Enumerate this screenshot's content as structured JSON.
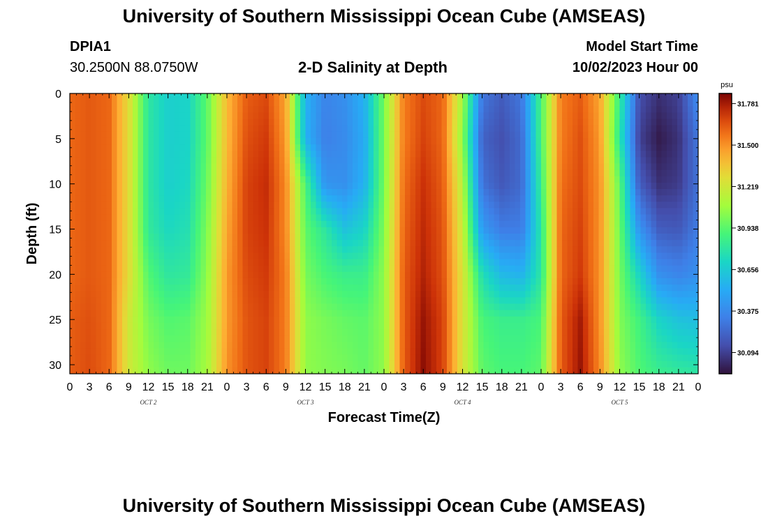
{
  "header": {
    "title": "University of Southern Mississippi Ocean Cube (AMSEAS)",
    "station_id": "DPIA1",
    "station_coords": "30.2500N  88.0750W",
    "subtitle": "2-D Salinity at Depth",
    "start_label": "Model Start Time",
    "start_value": "10/02/2023 Hour 00",
    "footer_title": "University of Southern Mississippi Ocean Cube (AMSEAS)"
  },
  "chart_data": {
    "type": "heatmap",
    "title": "2-D Salinity at Depth",
    "xlabel": "Forecast Time(Z)",
    "ylabel": "Depth (ft)",
    "x_range_hours": [
      0,
      96
    ],
    "y_range_ft": [
      0,
      31
    ],
    "y_inverted": true,
    "x_tick_labels": [
      "0",
      "3",
      "6",
      "9",
      "12",
      "15",
      "18",
      "21",
      "0",
      "3",
      "6",
      "9",
      "12",
      "15",
      "18",
      "21",
      "0",
      "3",
      "6",
      "9",
      "12",
      "15",
      "18",
      "21",
      "0",
      "3",
      "6",
      "9",
      "12",
      "15",
      "18",
      "21",
      "0"
    ],
    "y_ticks": [
      0,
      5,
      10,
      15,
      20,
      25,
      30
    ],
    "day_labels": [
      {
        "text": "OCT 2",
        "hour": 12
      },
      {
        "text": "OCT 3",
        "hour": 36
      },
      {
        "text": "OCT 4",
        "hour": 60
      },
      {
        "text": "OCT 5",
        "hour": 84
      }
    ],
    "colorbar": {
      "unit": "psu",
      "tick_labels": [
        "31.781",
        "31.500",
        "31.219",
        "30.938",
        "30.656",
        "30.375",
        "30.094"
      ],
      "min": 29.95,
      "max": 31.85,
      "colormap": "turbo"
    },
    "hours": [
      0,
      3,
      6,
      9,
      12,
      15,
      18,
      21,
      24,
      27,
      30,
      33,
      36,
      39,
      42,
      45,
      48,
      51,
      54,
      57,
      60,
      63,
      66,
      69,
      72,
      75,
      78,
      81,
      84,
      87,
      90,
      93,
      96
    ],
    "depths_ft": [
      0,
      5,
      10,
      15,
      20,
      25,
      31
    ],
    "values_psu": [
      [
        31.6,
        31.6,
        31.6,
        31.6,
        31.6,
        31.62,
        31.62
      ],
      [
        31.63,
        31.63,
        31.63,
        31.63,
        31.63,
        31.65,
        31.66
      ],
      [
        31.6,
        31.6,
        31.6,
        31.6,
        31.6,
        31.6,
        31.6
      ],
      [
        31.28,
        31.28,
        31.28,
        31.28,
        31.28,
        31.22,
        31.22
      ],
      [
        30.8,
        30.8,
        30.8,
        30.82,
        30.92,
        31.0,
        31.05
      ],
      [
        30.68,
        30.68,
        30.68,
        30.72,
        30.8,
        30.92,
        30.98
      ],
      [
        30.7,
        30.7,
        30.72,
        30.76,
        30.82,
        30.94,
        30.98
      ],
      [
        30.95,
        30.95,
        30.98,
        31.02,
        31.05,
        31.08,
        31.1
      ],
      [
        31.4,
        31.4,
        31.42,
        31.45,
        31.48,
        31.48,
        31.5
      ],
      [
        31.62,
        31.65,
        31.68,
        31.68,
        31.66,
        31.64,
        31.64
      ],
      [
        31.66,
        31.7,
        31.73,
        31.72,
        31.7,
        31.68,
        31.68
      ],
      [
        31.45,
        31.48,
        31.52,
        31.52,
        31.55,
        31.55,
        31.55
      ],
      [
        30.55,
        30.55,
        30.9,
        30.95,
        31.0,
        31.05,
        31.05
      ],
      [
        30.35,
        30.33,
        30.42,
        30.8,
        30.9,
        31.0,
        31.02
      ],
      [
        30.4,
        30.38,
        30.4,
        30.62,
        30.85,
        30.96,
        31.0
      ],
      [
        30.55,
        30.52,
        30.55,
        30.7,
        30.85,
        30.94,
        30.96
      ],
      [
        31.0,
        31.0,
        31.0,
        31.02,
        31.05,
        31.05,
        31.05
      ],
      [
        31.55,
        31.55,
        31.58,
        31.6,
        31.62,
        31.62,
        31.62
      ],
      [
        31.66,
        31.68,
        31.72,
        31.74,
        31.76,
        31.8,
        31.82
      ],
      [
        31.6,
        31.6,
        31.62,
        31.64,
        31.65,
        31.68,
        31.68
      ],
      [
        31.1,
        31.05,
        31.15,
        31.2,
        31.25,
        31.25,
        31.25
      ],
      [
        30.3,
        30.22,
        30.28,
        30.45,
        30.75,
        30.9,
        30.95
      ],
      [
        30.2,
        30.15,
        30.18,
        30.32,
        30.58,
        30.85,
        30.9
      ],
      [
        30.3,
        30.25,
        30.25,
        30.32,
        30.55,
        30.85,
        30.9
      ],
      [
        30.9,
        30.9,
        30.85,
        30.8,
        30.8,
        30.9,
        30.95
      ],
      [
        31.55,
        31.55,
        31.58,
        31.6,
        31.6,
        31.62,
        31.62
      ],
      [
        31.62,
        31.65,
        31.66,
        31.68,
        31.7,
        31.78,
        31.8
      ],
      [
        31.45,
        31.48,
        31.5,
        31.5,
        31.5,
        31.5,
        31.52
      ],
      [
        30.85,
        30.8,
        30.95,
        30.98,
        31.0,
        31.02,
        31.05
      ],
      [
        30.15,
        30.1,
        30.2,
        30.42,
        30.7,
        30.88,
        30.92
      ],
      [
        30.05,
        29.98,
        30.05,
        30.2,
        30.4,
        30.7,
        30.85
      ],
      [
        30.1,
        30.05,
        30.08,
        30.18,
        30.35,
        30.62,
        30.82
      ],
      [
        30.4,
        30.3,
        30.28,
        30.32,
        30.4,
        30.6,
        30.8
      ]
    ]
  },
  "colors": {
    "background": "#ffffff",
    "axis": "#000000"
  }
}
